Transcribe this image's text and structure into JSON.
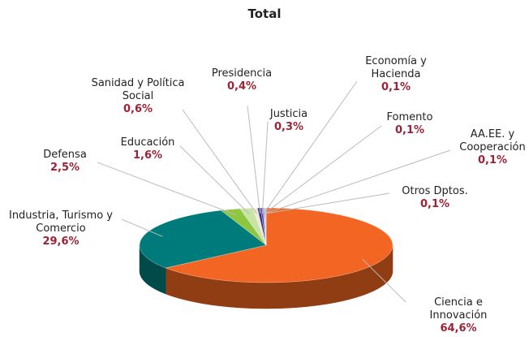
{
  "chart_data": {
    "type": "pie",
    "title": "Total",
    "categories": [
      "Ciencia e Innovación",
      "Industria, Turismo y Comercio",
      "Defensa",
      "Educación",
      "Sanidad y Política Social",
      "Presidencia",
      "Justicia",
      "Economía y Hacienda",
      "Fomento",
      "AA.EE. y Cooperación",
      "Otros Dptos."
    ],
    "values": [
      64.6,
      29.6,
      2.5,
      1.6,
      0.6,
      0.4,
      0.3,
      0.1,
      0.1,
      0.1,
      0.1
    ],
    "value_labels": [
      "64,6%",
      "29,6%",
      "2,5%",
      "1,6%",
      "0,6%",
      "0,4%",
      "0,3%",
      "0,1%",
      "0,1%",
      "0,1%",
      "0,1%"
    ],
    "colors": [
      "#f26522",
      "#007b7b",
      "#8dc63f",
      "#c8e3a6",
      "#efe9cf",
      "#2e3192",
      "#7b3f98",
      "#4a90d9",
      "#9e9e9e",
      "#5b9bd5",
      "#b0c4de"
    ]
  }
}
